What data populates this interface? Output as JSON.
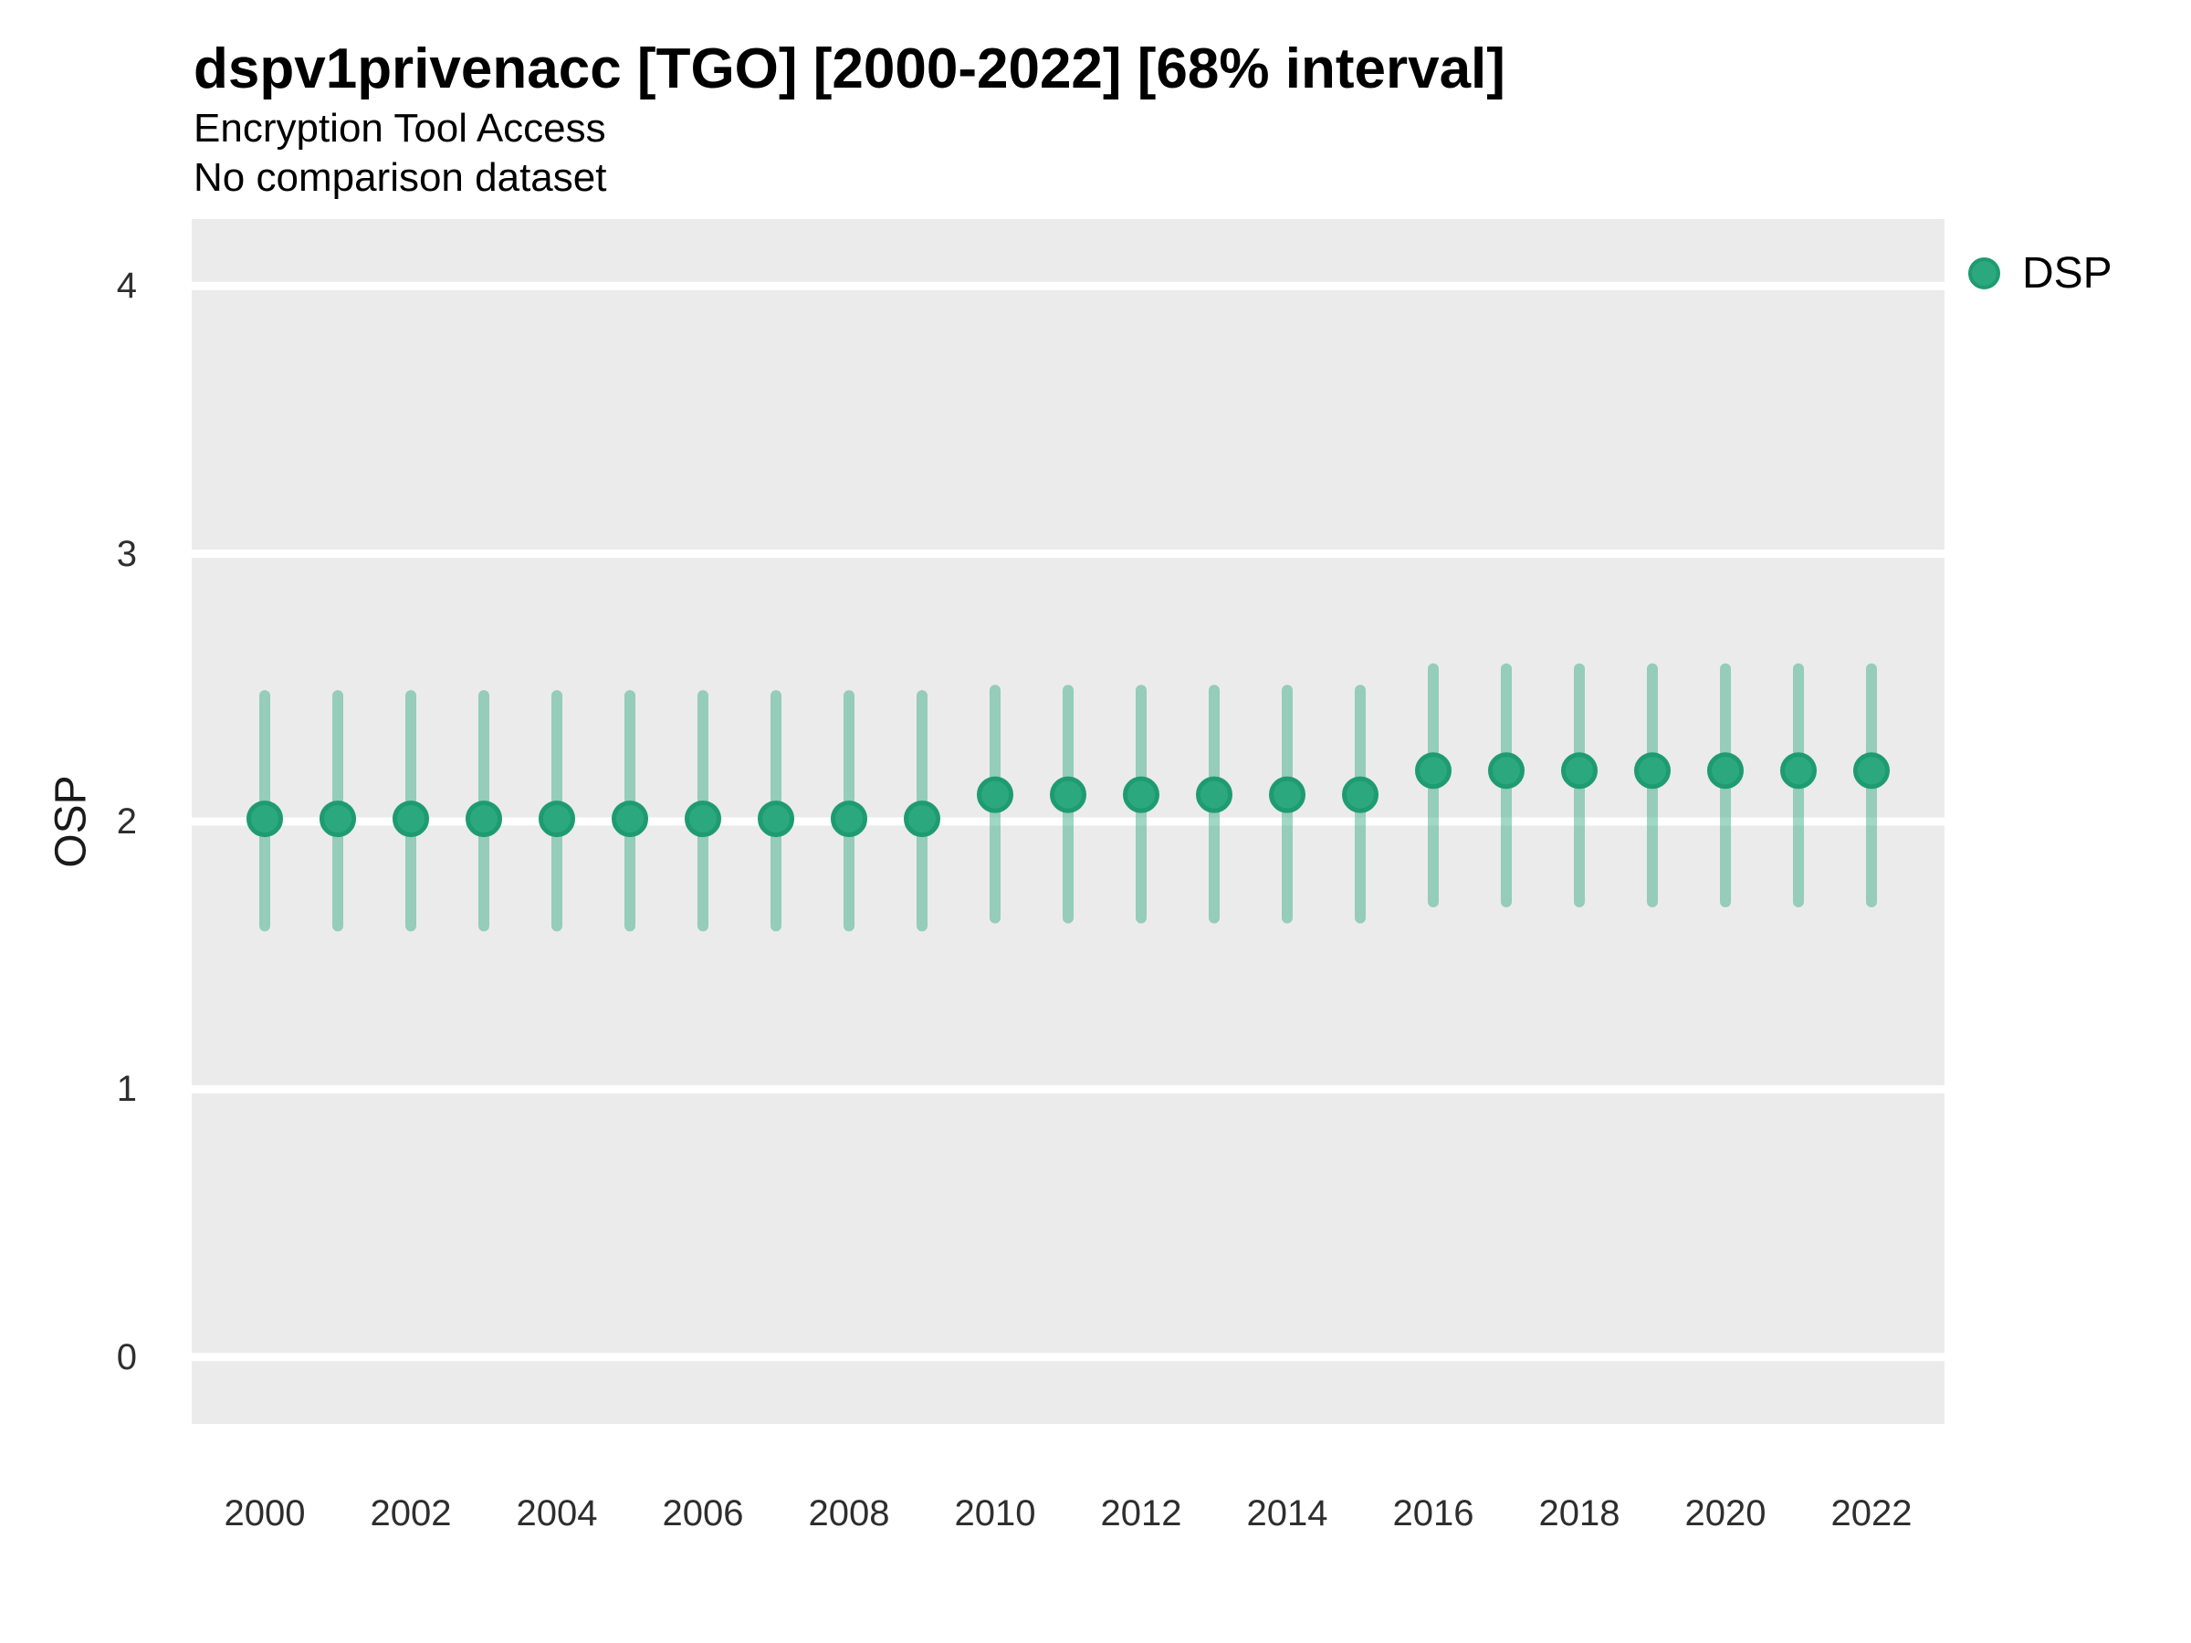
{
  "header": {
    "title": "dspv1privenacc [TGO] [2000-2022] [68% interval]",
    "subtitle": "Encryption Tool Access",
    "comparison_note": "No comparison dataset"
  },
  "legend": {
    "label": "DSP"
  },
  "colors": {
    "panel_background": "#EBEBEB",
    "gridline": "#FFFFFF",
    "point_fill": "#2BA87E",
    "point_stroke": "#1E9B71",
    "interval_bar": "rgba(44,167,126,0.45)",
    "tick_text": "#2E2E2E"
  },
  "chart_data": {
    "type": "scatter",
    "subtype": "pointrange-interval",
    "title": "dspv1privenacc [TGO] [2000-2022] [68% interval]",
    "subtitle": "Encryption Tool Access",
    "comparison_note": "No comparison dataset",
    "xlabel": "",
    "ylabel": "OSP",
    "legend_position": "right-top",
    "grid": "horizontal-major-white-on-grey",
    "xlim": [
      1999,
      2023
    ],
    "ylim": [
      -0.25,
      4.25
    ],
    "yticks": [
      0,
      1,
      2,
      3,
      4
    ],
    "xticks": [
      2000,
      2002,
      2004,
      2006,
      2008,
      2010,
      2012,
      2014,
      2016,
      2018,
      2020,
      2022
    ],
    "series": [
      {
        "name": "DSP",
        "x": [
          2000,
          2001,
          2002,
          2003,
          2004,
          2005,
          2006,
          2007,
          2008,
          2009,
          2010,
          2011,
          2012,
          2013,
          2014,
          2015,
          2016,
          2017,
          2018,
          2019,
          2020,
          2021,
          2022
        ],
        "est": [
          2.01,
          2.01,
          2.01,
          2.01,
          2.01,
          2.01,
          2.01,
          2.01,
          2.01,
          2.01,
          2.1,
          2.1,
          2.1,
          2.1,
          2.1,
          2.1,
          2.19,
          2.19,
          2.19,
          2.19,
          2.19,
          2.19,
          2.19
        ],
        "lo": [
          1.61,
          1.61,
          1.61,
          1.61,
          1.61,
          1.61,
          1.61,
          1.61,
          1.61,
          1.61,
          1.64,
          1.64,
          1.64,
          1.64,
          1.64,
          1.64,
          1.7,
          1.7,
          1.7,
          1.7,
          1.7,
          1.7,
          1.7
        ],
        "hi": [
          2.47,
          2.47,
          2.47,
          2.47,
          2.47,
          2.47,
          2.47,
          2.47,
          2.47,
          2.47,
          2.49,
          2.49,
          2.49,
          2.49,
          2.49,
          2.49,
          2.57,
          2.57,
          2.57,
          2.57,
          2.57,
          2.57,
          2.57
        ]
      }
    ]
  }
}
